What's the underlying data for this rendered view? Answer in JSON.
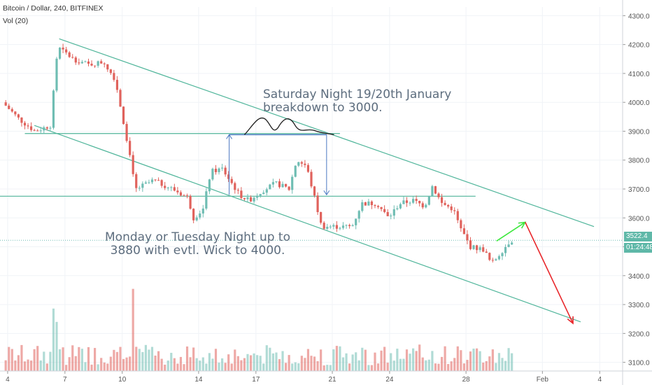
{
  "header": {
    "symbol_line": "Bitcoin / Dollar, 240, BITFINEX",
    "volume_line": "Vol (20)"
  },
  "annotations": {
    "upper_note": [
      "Saturday Night 19/20th January",
      "breakdown to 3000."
    ],
    "lower_note": [
      "Monday or Tuesday Night up to",
      "3880 with evtl. Wick to 4000."
    ]
  },
  "badges": {
    "last_price": "3522.4",
    "countdown": "01:24:48"
  },
  "colors": {
    "up": "#6fbdb3",
    "down": "#e0625c",
    "channel": "#4fb59a",
    "arrow_up": "#3de83d",
    "arrow_down": "#e8272b",
    "measure": "#4a78c2"
  },
  "chart_data": {
    "type": "candlestick",
    "title": "Bitcoin / Dollar, 240, BITFINEX",
    "y_axis": {
      "ticks": [
        3100,
        3200,
        3300,
        3400,
        3500,
        3600,
        3700,
        3800,
        3900,
        4000,
        4100,
        4200,
        4300
      ],
      "tick_labels": [
        "3100.0",
        "3200.0",
        "3300.0",
        "3400.0",
        "3500.0",
        "3600.0",
        "3700.0",
        "3800.0",
        "3900.0",
        "4000.0",
        "4100.0",
        "4200.0",
        "4300.0"
      ],
      "range": [
        3070,
        4330
      ]
    },
    "x_axis": {
      "tick_labels": [
        "4",
        "7",
        "10",
        "14",
        "17",
        "21",
        "24",
        "28",
        "Feb",
        "4"
      ],
      "tick_days": [
        4,
        7,
        10,
        14,
        17,
        21,
        24,
        28,
        32,
        35
      ],
      "range_days": [
        3.6,
        36.2
      ]
    },
    "price_path": [
      [
        3.9,
        4000
      ],
      [
        4.8,
        3940
      ],
      [
        5.6,
        3900
      ],
      [
        6.4,
        3920
      ],
      [
        6.8,
        4190
      ],
      [
        7.6,
        4150
      ],
      [
        8.4,
        4130
      ],
      [
        9.2,
        4140
      ],
      [
        9.8,
        4080
      ],
      [
        10.3,
        3910
      ],
      [
        10.9,
        3700
      ],
      [
        11.8,
        3730
      ],
      [
        12.8,
        3700
      ],
      [
        13.6,
        3670
      ],
      [
        13.9,
        3600
      ],
      [
        14.4,
        3630
      ],
      [
        14.8,
        3760
      ],
      [
        15.4,
        3770
      ],
      [
        15.9,
        3720
      ],
      [
        16.3,
        3680
      ],
      [
        16.8,
        3660
      ],
      [
        17.4,
        3690
      ],
      [
        18.2,
        3720
      ],
      [
        18.9,
        3700
      ],
      [
        19.3,
        3800
      ],
      [
        19.8,
        3780
      ],
      [
        20.2,
        3680
      ],
      [
        20.6,
        3570
      ],
      [
        21.5,
        3570
      ],
      [
        22.2,
        3570
      ],
      [
        22.7,
        3650
      ],
      [
        23.5,
        3650
      ],
      [
        24.1,
        3600
      ],
      [
        24.7,
        3650
      ],
      [
        25.4,
        3660
      ],
      [
        26.0,
        3640
      ],
      [
        26.4,
        3710
      ],
      [
        26.9,
        3650
      ],
      [
        27.5,
        3630
      ],
      [
        27.9,
        3560
      ],
      [
        28.4,
        3500
      ],
      [
        29.1,
        3490
      ],
      [
        29.5,
        3440
      ],
      [
        30.1,
        3490
      ],
      [
        30.5,
        3522.4
      ]
    ],
    "last_price": 3522.4,
    "horizontal_levels": [
      {
        "price": 3892,
        "from_day": 4.9,
        "to_day": 21.4
      },
      {
        "price": 3675,
        "from_day": 3.6,
        "to_day": 28.5
      }
    ],
    "channel_lines": [
      {
        "from": [
          6.7,
          4220
        ],
        "to": [
          34.7,
          3570
        ]
      },
      {
        "from": [
          5.4,
          3920
        ],
        "to": [
          34.0,
          3240
        ]
      }
    ],
    "projection_arrows": [
      {
        "from": [
          29.6,
          3520
        ],
        "to": [
          31.1,
          3585
        ],
        "color": "up"
      },
      {
        "from": [
          31.1,
          3585
        ],
        "to": [
          33.6,
          3235
        ],
        "color": "down"
      }
    ],
    "measure_box": {
      "from_day": 15.6,
      "to_day": 20.7,
      "low": 3680,
      "high": 3888
    }
  }
}
